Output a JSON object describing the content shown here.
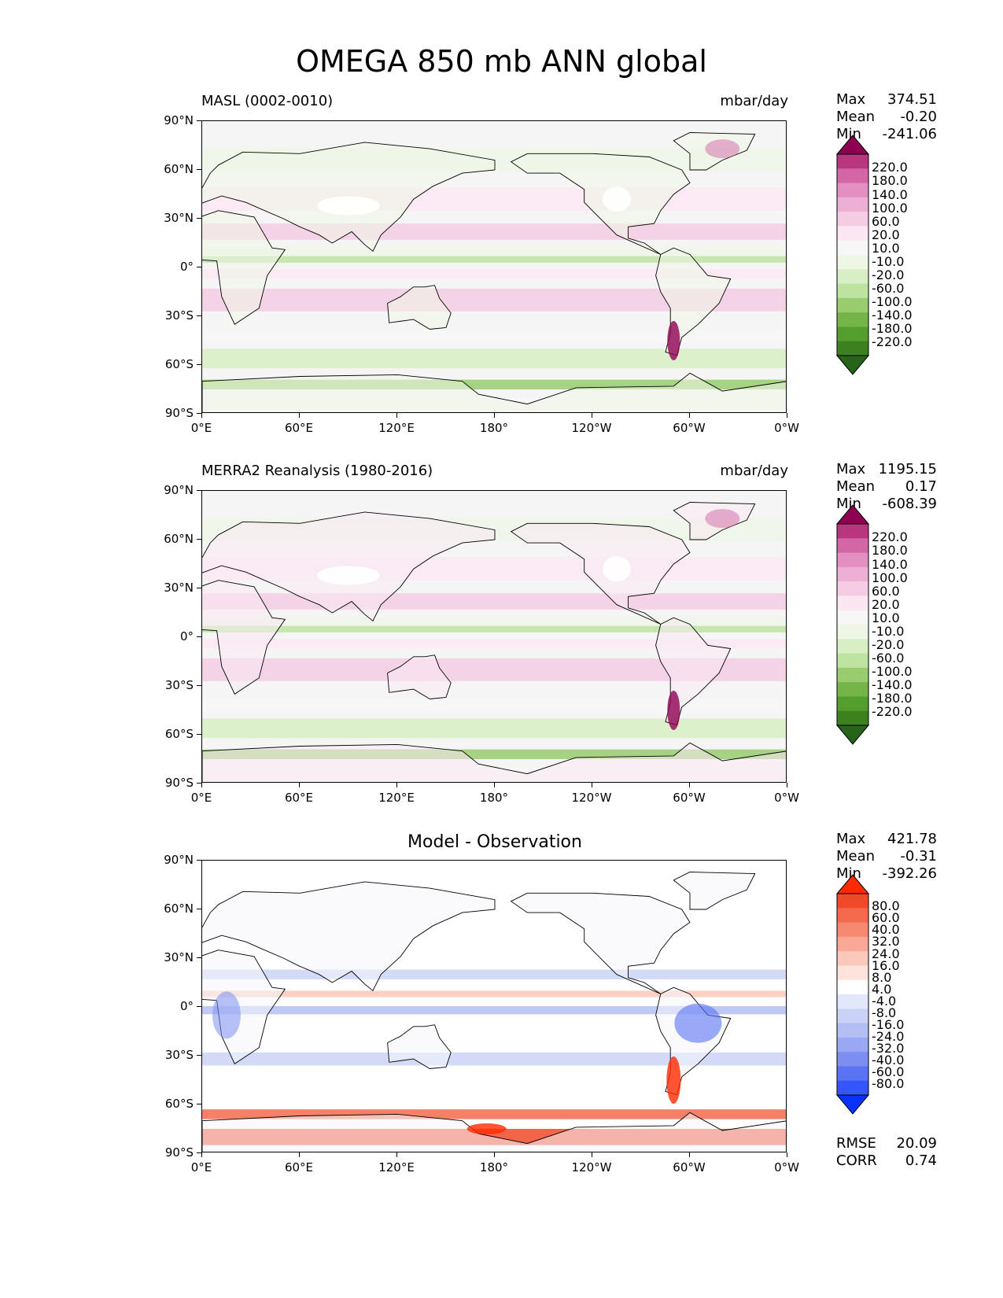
{
  "title": "OMEGA 850 mb ANN global",
  "colors": {
    "land_outline": "#000000",
    "background": "#f5f5f5",
    "piyg": [
      "#276419",
      "#3d8020",
      "#549e2e",
      "#74b449",
      "#98cc6e",
      "#bde3a0",
      "#d8eec4",
      "#eef6e6",
      "#f7f7f7",
      "#fbe7f2",
      "#f5cce3",
      "#eeafd4",
      "#e38fc2",
      "#d266a6",
      "#b9367f",
      "#8e0152"
    ],
    "bwr": [
      "#0a32ff",
      "#3455fa",
      "#5a73f3",
      "#7c8ff0",
      "#9aa7f2",
      "#b3bff4",
      "#cad3f7",
      "#e2e8fb",
      "#ffffff",
      "#fde3dc",
      "#fcc8bb",
      "#f9a896",
      "#f68970",
      "#f36a4d",
      "#f14a2a",
      "#ff2a00"
    ]
  },
  "panels": [
    {
      "id": "model",
      "left_title": "MASL (0002-0010)",
      "center_title": "",
      "units": "mbar/day",
      "stats": {
        "max_label": "Max",
        "max": "374.51",
        "mean_label": "Mean",
        "mean": "-0.20",
        "min_label": "Min",
        "min": "-241.06"
      },
      "colorbar": {
        "scheme": "piyg",
        "labels": [
          "220.0",
          "180.0",
          "140.0",
          "100.0",
          "60.0",
          "20.0",
          "10.0",
          "-10.0",
          "-20.0",
          "-60.0",
          "-100.0",
          "-140.0",
          "-180.0",
          "-220.0"
        ]
      },
      "metrics": null
    },
    {
      "id": "obs",
      "left_title": "MERRA2 Reanalysis (1980-2016)",
      "center_title": "",
      "units": "mbar/day",
      "stats": {
        "max_label": "Max",
        "max": "1195.15",
        "mean_label": "Mean",
        "mean": "0.17",
        "min_label": "Min",
        "min": "-608.39"
      },
      "colorbar": {
        "scheme": "piyg",
        "labels": [
          "220.0",
          "180.0",
          "140.0",
          "100.0",
          "60.0",
          "20.0",
          "10.0",
          "-10.0",
          "-20.0",
          "-60.0",
          "-100.0",
          "-140.0",
          "-180.0",
          "-220.0"
        ]
      },
      "metrics": null
    },
    {
      "id": "diff",
      "left_title": "",
      "center_title": "Model - Observation",
      "units": "",
      "stats": {
        "max_label": "Max",
        "max": "421.78",
        "mean_label": "Mean",
        "mean": "-0.31",
        "min_label": "Min",
        "min": "-392.26"
      },
      "colorbar": {
        "scheme": "bwr",
        "labels": [
          "80.0",
          "60.0",
          "40.0",
          "32.0",
          "24.0",
          "16.0",
          "8.0",
          "4.0",
          "-4.0",
          "-8.0",
          "-16.0",
          "-24.0",
          "-32.0",
          "-40.0",
          "-60.0",
          "-80.0"
        ]
      },
      "metrics": {
        "rmse_label": "RMSE",
        "rmse": "20.09",
        "corr_label": "CORR",
        "corr": "0.74"
      }
    }
  ],
  "axes": {
    "y_ticks": [
      "90°N",
      "60°N",
      "30°N",
      "0°",
      "30°S",
      "60°S",
      "90°S"
    ],
    "x_ticks": [
      "0°E",
      "60°E",
      "120°E",
      "180°",
      "120°W",
      "60°W",
      "0°W"
    ]
  }
}
